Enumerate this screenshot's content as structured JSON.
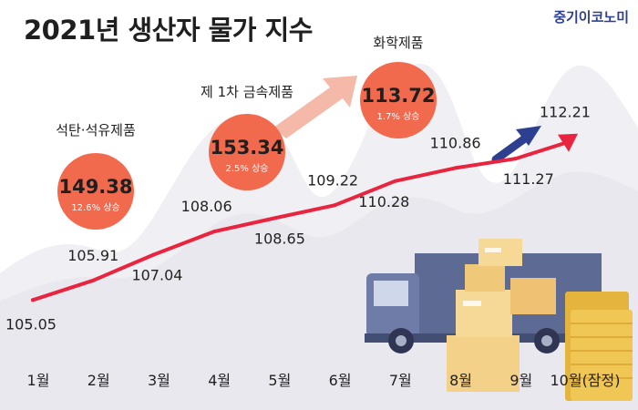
{
  "title": "2021년 생산자 물가 지수",
  "brand": "중기이코노미",
  "chart_data": {
    "type": "line",
    "title": "2021년 생산자 물가 지수",
    "categories": [
      "1월",
      "2월",
      "3월",
      "4월",
      "5월",
      "6월",
      "7월",
      "8월",
      "9월",
      "10월(잠정)"
    ],
    "values": [
      105.05,
      105.91,
      107.04,
      108.06,
      108.65,
      109.22,
      110.28,
      110.86,
      111.27,
      112.21
    ],
    "ylim": [
      104.5,
      113
    ],
    "grid": false,
    "line_color": "#e8243f",
    "highlights": [
      {
        "category": "석탄·석유제품",
        "value": "149.38",
        "change": "12.6% 상승"
      },
      {
        "category": "제 1차 금속제품",
        "value": "153.34",
        "change": "2.5% 상승"
      },
      {
        "category": "화학제품",
        "value": "113.72",
        "change": "1.7% 상승"
      }
    ],
    "highlight_color": "#f26a4e"
  }
}
